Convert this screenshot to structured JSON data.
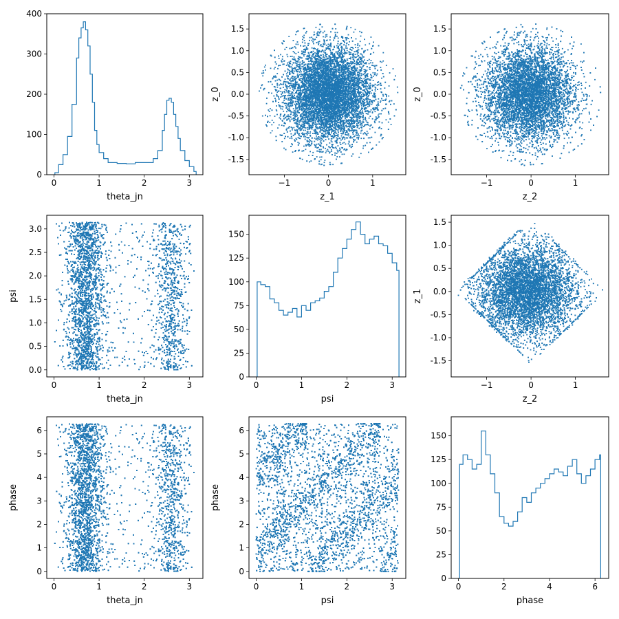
{
  "figure": {
    "color": "#1f77b4"
  },
  "chart_data": [
    {
      "id": "p00",
      "type": "histogram",
      "xlabel": "theta_jn",
      "ylabel": "",
      "xlim": [
        -0.16,
        3.3
      ],
      "ylim": [
        0,
        400
      ],
      "xticks": [
        0,
        1,
        2,
        3
      ],
      "yticks": [
        0,
        100,
        200,
        300,
        400
      ],
      "x": [
        0.02,
        0.1,
        0.2,
        0.3,
        0.4,
        0.5,
        0.55,
        0.6,
        0.65,
        0.7,
        0.75,
        0.8,
        0.85,
        0.9,
        0.95,
        1.0,
        1.1,
        1.2,
        1.4,
        1.6,
        1.8,
        2.0,
        2.2,
        2.3,
        2.4,
        2.45,
        2.5,
        2.55,
        2.6,
        2.65,
        2.7,
        2.75,
        2.8,
        2.9,
        3.0,
        3.1
      ],
      "values": [
        5,
        25,
        50,
        95,
        175,
        290,
        340,
        365,
        380,
        360,
        320,
        250,
        180,
        110,
        75,
        55,
        40,
        30,
        28,
        27,
        30,
        30,
        40,
        60,
        110,
        150,
        185,
        190,
        180,
        150,
        120,
        90,
        60,
        35,
        20,
        8
      ]
    },
    {
      "id": "p01",
      "type": "scatter",
      "xlabel": "z_1",
      "ylabel": "z_0",
      "xlim": [
        -1.8,
        1.75
      ],
      "ylim": [
        -1.85,
        1.85
      ],
      "xticks": [
        -1,
        0,
        1
      ],
      "yticks": [
        -1.5,
        -1.0,
        -0.5,
        0.0,
        0.5,
        1.0,
        1.5
      ],
      "distribution": {
        "shape": "disc",
        "center": [
          0,
          0
        ],
        "spread": [
          0.5,
          0.55
        ],
        "points": 9000
      }
    },
    {
      "id": "p02",
      "type": "scatter",
      "xlabel": "z_2",
      "ylabel": "z_0",
      "xlim": [
        -1.8,
        1.75
      ],
      "ylim": [
        -1.85,
        1.85
      ],
      "xticks": [
        -1,
        0,
        1
      ],
      "yticks": [
        -1.5,
        -1.0,
        -0.5,
        0.0,
        0.5,
        1.0,
        1.5
      ],
      "distribution": {
        "shape": "disc",
        "center": [
          -0.05,
          0
        ],
        "spread": [
          0.5,
          0.55
        ],
        "points": 9000
      }
    },
    {
      "id": "p10",
      "type": "scatter",
      "xlabel": "theta_jn",
      "ylabel": "psi",
      "xlim": [
        -0.16,
        3.3
      ],
      "ylim": [
        -0.15,
        3.29
      ],
      "xticks": [
        0,
        1,
        2,
        3
      ],
      "yticks": [
        0.0,
        0.5,
        1.0,
        1.5,
        2.0,
        2.5,
        3.0
      ],
      "distribution": {
        "shape": "bands",
        "bands": [
          0.7,
          2.6
        ],
        "range": [
          0,
          3.14
        ],
        "points": 9000
      }
    },
    {
      "id": "p11",
      "type": "histogram",
      "xlabel": "psi",
      "ylabel": "",
      "xlim": [
        -0.16,
        3.3
      ],
      "ylim": [
        0,
        170
      ],
      "xticks": [
        0,
        1,
        2,
        3
      ],
      "yticks": [
        0,
        25,
        50,
        75,
        100,
        125,
        150
      ],
      "x": [
        0.02,
        0.1,
        0.2,
        0.3,
        0.4,
        0.5,
        0.6,
        0.7,
        0.8,
        0.9,
        1.0,
        1.1,
        1.2,
        1.3,
        1.4,
        1.5,
        1.6,
        1.7,
        1.8,
        1.9,
        2.0,
        2.1,
        2.2,
        2.3,
        2.4,
        2.5,
        2.6,
        2.7,
        2.8,
        2.9,
        3.0,
        3.1
      ],
      "values": [
        100,
        97,
        95,
        82,
        78,
        70,
        65,
        68,
        72,
        63,
        75,
        70,
        78,
        80,
        83,
        90,
        95,
        110,
        125,
        135,
        145,
        155,
        163,
        150,
        140,
        145,
        148,
        140,
        138,
        130,
        120,
        112
      ]
    },
    {
      "id": "p12",
      "type": "scatter",
      "xlabel": "z_2",
      "ylabel": "z_1",
      "xlim": [
        -1.8,
        1.75
      ],
      "ylim": [
        -1.85,
        1.65
      ],
      "xticks": [
        -1,
        0,
        1
      ],
      "yticks": [
        -1.5,
        -1.0,
        -0.5,
        0.0,
        0.5,
        1.0,
        1.5
      ],
      "distribution": {
        "shape": "diamond",
        "center": [
          -0.1,
          0
        ],
        "spread": [
          0.55,
          0.5
        ],
        "points": 9000
      }
    },
    {
      "id": "p20",
      "type": "scatter",
      "xlabel": "theta_jn",
      "ylabel": "phase",
      "xlim": [
        -0.16,
        3.3
      ],
      "ylim": [
        -0.3,
        6.58
      ],
      "xticks": [
        0,
        1,
        2,
        3
      ],
      "yticks": [
        0,
        1,
        2,
        3,
        4,
        5,
        6
      ],
      "distribution": {
        "shape": "bands",
        "bands": [
          0.7,
          2.6
        ],
        "range": [
          0,
          6.28
        ],
        "points": 9000
      }
    },
    {
      "id": "p21",
      "type": "scatter",
      "xlabel": "psi",
      "ylabel": "phase",
      "xlim": [
        -0.16,
        3.3
      ],
      "ylim": [
        -0.3,
        6.58
      ],
      "xticks": [
        0,
        1,
        2,
        3
      ],
      "yticks": [
        0,
        1,
        2,
        3,
        4,
        5,
        6
      ],
      "distribution": {
        "shape": "stripes",
        "range": [
          0,
          6.28
        ],
        "points": 9000
      }
    },
    {
      "id": "p22",
      "type": "histogram",
      "xlabel": "phase",
      "ylabel": "",
      "xlim": [
        -0.32,
        6.6
      ],
      "ylim": [
        0,
        170
      ],
      "xticks": [
        0,
        2,
        4,
        6
      ],
      "yticks": [
        0,
        25,
        50,
        75,
        100,
        125,
        150
      ],
      "x": [
        0.05,
        0.2,
        0.4,
        0.6,
        0.8,
        1.0,
        1.2,
        1.4,
        1.6,
        1.8,
        2.0,
        2.2,
        2.4,
        2.6,
        2.8,
        3.0,
        3.2,
        3.4,
        3.6,
        3.8,
        4.0,
        4.2,
        4.4,
        4.6,
        4.8,
        5.0,
        5.2,
        5.4,
        5.6,
        5.8,
        6.0,
        6.2
      ],
      "values": [
        120,
        130,
        125,
        115,
        120,
        155,
        130,
        110,
        90,
        65,
        58,
        55,
        60,
        70,
        85,
        80,
        90,
        95,
        100,
        105,
        110,
        115,
        112,
        108,
        118,
        125,
        110,
        100,
        108,
        115,
        125,
        130
      ]
    }
  ]
}
